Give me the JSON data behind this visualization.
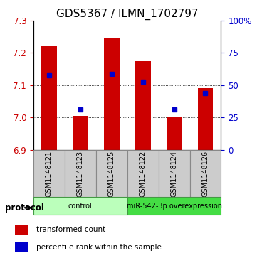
{
  "title": "GDS5367 / ILMN_1702797",
  "samples": [
    "GSM1148121",
    "GSM1148123",
    "GSM1148125",
    "GSM1148122",
    "GSM1148124",
    "GSM1148126"
  ],
  "bar_bottoms": [
    6.9,
    6.9,
    6.9,
    6.9,
    6.9,
    6.9
  ],
  "bar_tops": [
    7.22,
    7.005,
    7.245,
    7.175,
    7.002,
    7.09
  ],
  "blue_dots": [
    7.13,
    7.025,
    7.135,
    7.11,
    7.025,
    7.075
  ],
  "ylim": [
    6.9,
    7.3
  ],
  "yticks_left": [
    6.9,
    7.0,
    7.1,
    7.2,
    7.3
  ],
  "yticks_right_pct": [
    0,
    25,
    50,
    75,
    100
  ],
  "yticks_right_labels": [
    "0",
    "25",
    "50",
    "75",
    "100%"
  ],
  "bar_color": "#cc0000",
  "dot_color": "#0000cc",
  "groups": [
    {
      "label": "control",
      "indices": [
        0,
        1,
        2
      ],
      "color": "#bbffbb"
    },
    {
      "label": "miR-542-3p overexpression",
      "indices": [
        3,
        4,
        5
      ],
      "color": "#44dd44"
    }
  ],
  "legend_items": [
    {
      "color": "#cc0000",
      "label": "transformed count"
    },
    {
      "color": "#0000cc",
      "label": "percentile rank within the sample"
    }
  ],
  "protocol_label": "protocol",
  "title_fontsize": 11,
  "tick_fontsize": 8.5,
  "label_fontsize": 7.5
}
